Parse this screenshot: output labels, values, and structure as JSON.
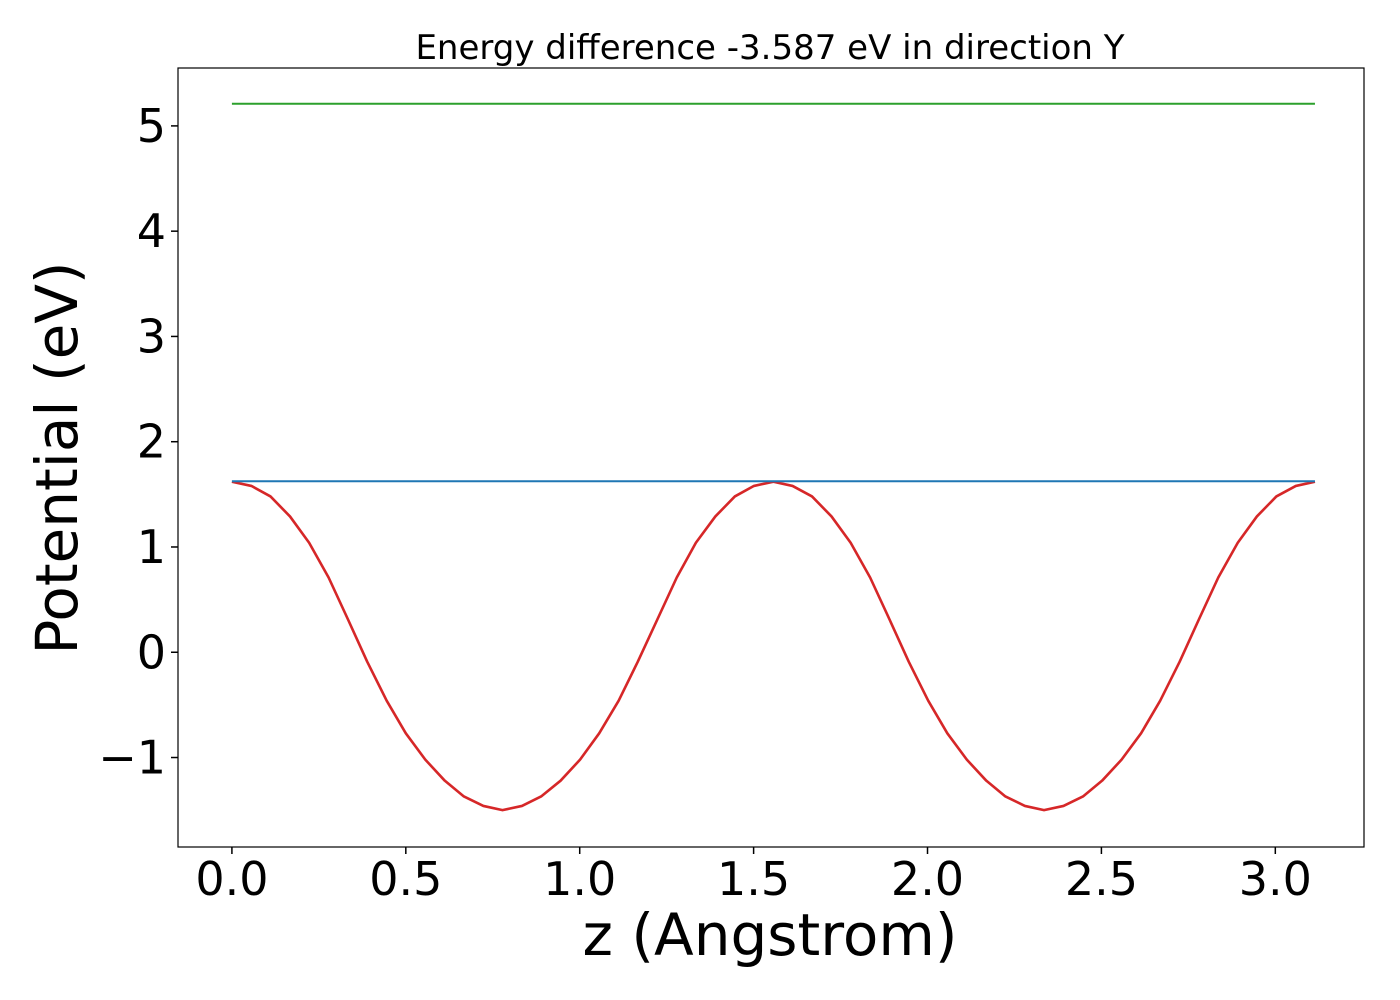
{
  "chart_data": {
    "type": "line",
    "title": "Energy difference -3.587 eV in direction Y",
    "xlabel": "z (Angstrom)",
    "ylabel": "Potential (eV)",
    "xlim": [
      -0.155,
      3.255
    ],
    "ylim": [
      -1.85,
      5.55
    ],
    "xticks": [
      0.0,
      0.5,
      1.0,
      1.5,
      2.0,
      2.5,
      3.0
    ],
    "xtick_labels": [
      "0.0",
      "0.5",
      "1.0",
      "1.5",
      "2.0",
      "2.5",
      "3.0"
    ],
    "yticks": [
      -1,
      0,
      1,
      2,
      3,
      4,
      5
    ],
    "ytick_labels": [
      "−1",
      "0",
      "1",
      "2",
      "3",
      "4",
      "5"
    ],
    "grid": false,
    "series": [
      {
        "color": "#d62728",
        "x": [
          0.0,
          0.056,
          0.111,
          0.167,
          0.222,
          0.278,
          0.334,
          0.389,
          0.445,
          0.5,
          0.556,
          0.612,
          0.667,
          0.723,
          0.778,
          0.834,
          0.889,
          0.945,
          1.001,
          1.056,
          1.112,
          1.167,
          1.223,
          1.279,
          1.334,
          1.39,
          1.446,
          1.501,
          1.557,
          1.612,
          1.668,
          1.724,
          1.779,
          1.835,
          1.891,
          1.946,
          2.002,
          2.057,
          2.113,
          2.169,
          2.224,
          2.28,
          2.335,
          2.391,
          2.447,
          2.502,
          2.558,
          2.614,
          2.669,
          2.725,
          2.78,
          2.836,
          2.892,
          2.947,
          3.003,
          3.059,
          3.114
        ],
        "y": [
          1.62,
          1.58,
          1.48,
          1.29,
          1.04,
          0.71,
          0.31,
          -0.09,
          -0.46,
          -0.77,
          -1.02,
          -1.22,
          -1.37,
          -1.46,
          -1.5,
          -1.46,
          -1.37,
          -1.22,
          -1.02,
          -0.77,
          -0.46,
          -0.09,
          0.31,
          0.71,
          1.04,
          1.29,
          1.48,
          1.58,
          1.62,
          1.58,
          1.48,
          1.29,
          1.04,
          0.71,
          0.31,
          -0.09,
          -0.46,
          -0.77,
          -1.02,
          -1.22,
          -1.37,
          -1.46,
          -1.5,
          -1.46,
          -1.37,
          -1.22,
          -1.02,
          -0.77,
          -0.46,
          -0.09,
          0.31,
          0.71,
          1.04,
          1.29,
          1.48,
          1.58,
          1.62
        ]
      },
      {
        "color": "#1f77b4",
        "x": [
          0.0,
          3.114
        ],
        "y": [
          1.625,
          1.625
        ]
      },
      {
        "color": "#2ca02c",
        "x": [
          0.0,
          3.114
        ],
        "y": [
          5.21,
          5.21
        ]
      }
    ]
  }
}
